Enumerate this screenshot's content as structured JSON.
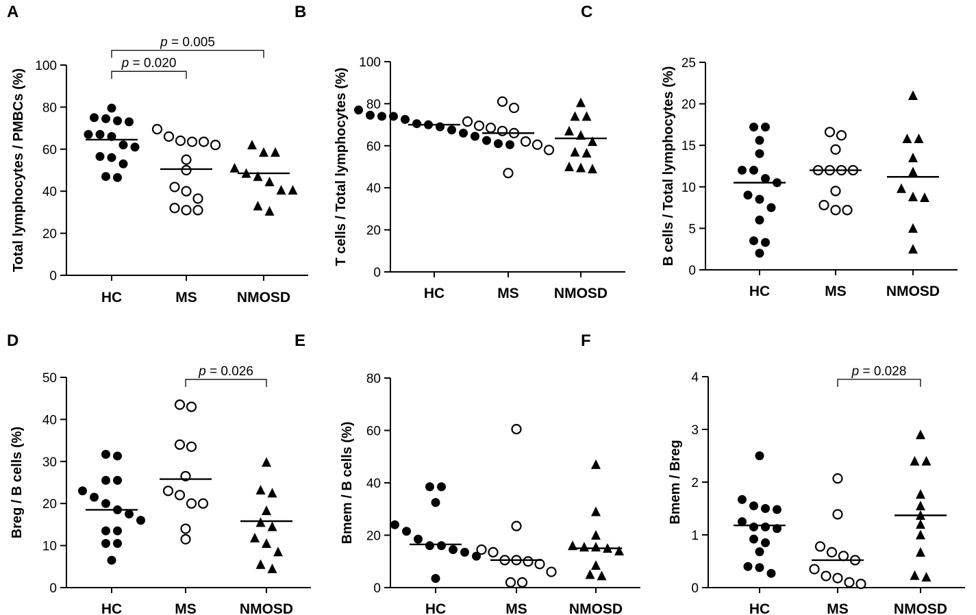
{
  "chart_data": [
    {
      "type": "scatter",
      "panel": "A",
      "ylabel": "Total lymphocytes / PMBCs (%)",
      "categories": [
        "HC",
        "MS",
        "NMOSD"
      ],
      "ylim": [
        0,
        100
      ],
      "yticks": [
        0,
        20,
        40,
        60,
        80,
        100
      ],
      "series": [
        {
          "name": "HC",
          "marker": "filled-circle",
          "median": 64.5,
          "values": [
            79.5,
            75,
            73.5,
            74.5,
            73,
            67,
            67,
            66,
            62,
            61,
            56,
            56.5,
            53,
            47,
            46.5
          ]
        },
        {
          "name": "MS",
          "marker": "open-circle",
          "median": 50.5,
          "values": [
            69.5,
            66,
            64,
            63.5,
            63.5,
            62,
            55,
            50,
            42,
            40,
            36.5,
            31,
            32,
            31
          ]
        },
        {
          "name": "NMOSD",
          "marker": "filled-triangle",
          "median": 48.5,
          "values": [
            62,
            58.5,
            58.5,
            51,
            48.5,
            47,
            44.5,
            40.5,
            40.5,
            33,
            30.5
          ]
        }
      ],
      "annotations": [
        {
          "from": "HC",
          "to": "MS",
          "p_symbol": "p",
          "p_text": " = 0.020",
          "at": 97
        },
        {
          "from": "HC",
          "to": "NMOSD",
          "p_symbol": "p",
          "p_text": " = 0.005",
          "at": 107
        }
      ]
    },
    {
      "type": "scatter",
      "panel": "B",
      "ylabel": "T cells / Total lymphocytes (%)",
      "categories": [
        "HC",
        "MS",
        "NMOSD"
      ],
      "ylim": [
        0,
        100
      ],
      "yticks": [
        0,
        20,
        40,
        60,
        80,
        100
      ],
      "series": [
        {
          "name": "HC",
          "marker": "filled-circle",
          "median": 70,
          "values": [
            77,
            74.5,
            74,
            74,
            72.5,
            70.5,
            70,
            69,
            67.5,
            66,
            64.5,
            62.5,
            61,
            60.5
          ]
        },
        {
          "name": "MS",
          "marker": "open-circle",
          "median": 66,
          "values": [
            81,
            78,
            71.5,
            69.5,
            68.5,
            67,
            66,
            62,
            60.5,
            58,
            47
          ]
        },
        {
          "name": "NMOSD",
          "marker": "filled-triangle",
          "median": 63.5,
          "values": [
            80.5,
            74,
            74,
            67,
            65,
            62,
            57,
            56.5,
            50,
            49.5,
            49
          ]
        }
      ],
      "annotations": []
    },
    {
      "type": "scatter",
      "panel": "C",
      "ylabel": "B cells / Total lymphocytes (%)",
      "categories": [
        "HC",
        "MS",
        "NMOSD"
      ],
      "ylim": [
        0,
        25
      ],
      "yticks": [
        0,
        5,
        10,
        15,
        20,
        25
      ],
      "series": [
        {
          "name": "HC",
          "marker": "filled-circle",
          "median": 10.5,
          "values": [
            17.2,
            17.2,
            15.6,
            14,
            12,
            12,
            11,
            10.5,
            9,
            8.5,
            7.5,
            6,
            3.5,
            3.3,
            2
          ]
        },
        {
          "name": "MS",
          "marker": "open-circle",
          "median": 12,
          "values": [
            16.6,
            16.2,
            14.5,
            12,
            12,
            12,
            12,
            9.5,
            7.8,
            7.2,
            7.2
          ]
        },
        {
          "name": "NMOSD",
          "marker": "filled-triangle",
          "median": 11.2,
          "values": [
            21,
            15.8,
            15.8,
            13.5,
            11.8,
            9.8,
            8.8,
            8.7,
            5,
            2.5
          ]
        }
      ],
      "annotations": []
    },
    {
      "type": "scatter",
      "panel": "D",
      "ylabel": "Breg / B cells (%)",
      "categories": [
        "HC",
        "MS",
        "NMOSD"
      ],
      "ylim": [
        0,
        50
      ],
      "yticks": [
        0,
        10,
        20,
        30,
        40,
        50
      ],
      "series": [
        {
          "name": "HC",
          "marker": "filled-circle",
          "median": 18.5,
          "values": [
            31.7,
            31.3,
            25.5,
            25.5,
            23,
            21.5,
            20,
            18.5,
            17.5,
            16,
            13.5,
            13.5,
            10.5,
            10.5,
            6.5
          ]
        },
        {
          "name": "MS",
          "marker": "open-circle",
          "median": 25.8,
          "values": [
            43.5,
            43,
            34,
            33.5,
            26.5,
            23,
            22,
            20,
            20,
            14,
            11.5
          ]
        },
        {
          "name": "NMOSD",
          "marker": "filled-triangle",
          "median": 15.8,
          "values": [
            29.8,
            23.2,
            22.5,
            18.3,
            15.5,
            14.5,
            11.8,
            10.5,
            8.5,
            5.5,
            4.5
          ]
        }
      ],
      "annotations": [
        {
          "from": "MS",
          "to": "NMOSD",
          "p_symbol": "p",
          "p_text": " = 0.026",
          "at": 49.5
        }
      ]
    },
    {
      "type": "scatter",
      "panel": "E",
      "ylabel": "Bmem / B cells (%)",
      "categories": [
        "HC",
        "MS",
        "NMOSD"
      ],
      "ylim": [
        0,
        80
      ],
      "yticks": [
        0,
        20,
        40,
        60,
        80
      ],
      "series": [
        {
          "name": "HC",
          "marker": "filled-circle",
          "median": 16.5,
          "values": [
            38.5,
            38.5,
            32.5,
            24,
            21.5,
            18.5,
            16,
            16,
            14.5,
            13.5,
            12,
            3.5
          ]
        },
        {
          "name": "MS",
          "marker": "open-circle",
          "median": 10.5,
          "values": [
            60.5,
            23.5,
            14.5,
            13.5,
            10.5,
            10.5,
            10,
            9,
            6,
            2,
            2
          ]
        },
        {
          "name": "NMOSD",
          "marker": "filled-triangle",
          "median": 15,
          "values": [
            47,
            29,
            20,
            16,
            15.5,
            15.5,
            15,
            14,
            8.5,
            5,
            4.5
          ]
        }
      ],
      "annotations": []
    },
    {
      "type": "scatter",
      "panel": "F",
      "ylabel": "Bmem / Breg",
      "categories": [
        "HC",
        "MS",
        "NMOSD"
      ],
      "ylim": [
        0,
        4
      ],
      "yticks": [
        0,
        1,
        2,
        3,
        4
      ],
      "series": [
        {
          "name": "HC",
          "marker": "filled-circle",
          "median": 1.18,
          "values": [
            2.5,
            1.67,
            1.55,
            1.5,
            1.48,
            1.25,
            1.15,
            1.12,
            1.15,
            0.92,
            0.85,
            0.68,
            0.4,
            0.38,
            0.27
          ]
        },
        {
          "name": "MS",
          "marker": "open-circle",
          "median": 0.52,
          "values": [
            2.07,
            1.39,
            0.78,
            0.67,
            0.6,
            0.52,
            0.35,
            0.22,
            0.18,
            0.1,
            0.07
          ]
        },
        {
          "name": "NMOSD",
          "marker": "filled-triangle",
          "median": 1.37,
          "values": [
            2.9,
            2.4,
            2.4,
            1.77,
            1.55,
            1.37,
            1.2,
            1.0,
            0.67,
            0.23,
            0.2
          ]
        }
      ],
      "annotations": [
        {
          "from": "MS",
          "to": "NMOSD",
          "p_symbol": "p",
          "p_text": " = 0.028",
          "at": 3.95
        }
      ]
    }
  ]
}
